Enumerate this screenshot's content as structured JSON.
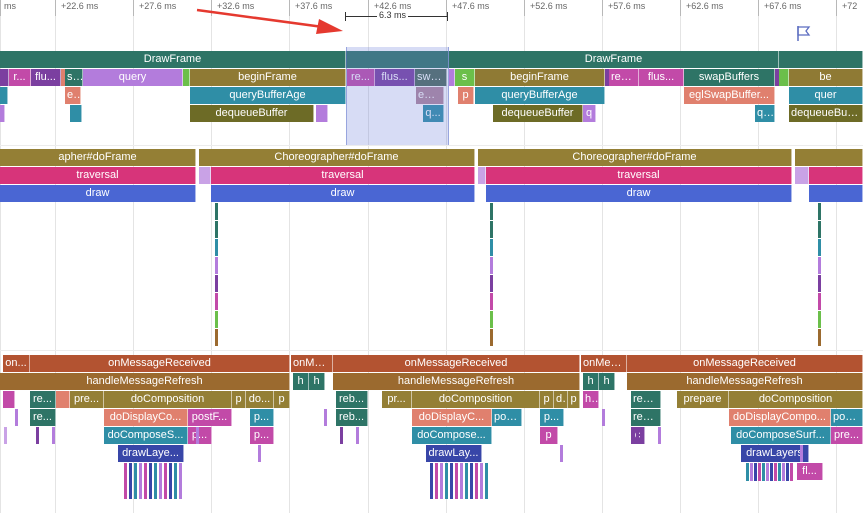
{
  "ruler": {
    "ticks": [
      {
        "label": "ms"
      },
      {
        "label": "+22.6 ms"
      },
      {
        "label": "+27.6 ms"
      },
      {
        "label": "+32.6 ms"
      },
      {
        "label": "+37.6 ms"
      },
      {
        "label": "+42.6 ms"
      },
      {
        "label": "+47.6 ms"
      },
      {
        "label": "+52.6 ms"
      },
      {
        "label": "+57.6 ms"
      },
      {
        "label": "+62.6 ms"
      },
      {
        "label": "+67.6 ms"
      },
      {
        "label": "+72"
      }
    ]
  },
  "measurement": {
    "label": "6.3 ms"
  },
  "colors": {
    "teal": "#2e7466",
    "gray_green": "#4d6a5a",
    "olive": "#8f7a34",
    "olive2": "#947f35",
    "magenta": "#c24aa8",
    "purple": "#7b3fa0",
    "violet": "#b37cdc",
    "lilac": "#c9a2e6",
    "salmon": "#e0806e",
    "cyan": "#2f8ea6",
    "mauve": "#b0859a",
    "green": "#6bbf4a",
    "pink": "#d7347a",
    "blue": "#4a66d3",
    "rust": "#b35331",
    "brown": "#9b6a2f",
    "darkolive": "#6d6b26",
    "navy": "#3846a8"
  },
  "render_thread": {
    "frames": [
      {
        "draw": "DrawFrame",
        "row2": [
          {
            "label": "r..."
          },
          {
            "label": "flu..."
          },
          {
            "label": "s..."
          },
          {
            "label": "query"
          },
          {
            "label": "beginFrame"
          }
        ],
        "row3": [
          {
            "label": "e..."
          },
          {
            "label": "queryBufferAge"
          }
        ],
        "row4": [
          {
            "label": "dequeueBuffer"
          }
        ]
      },
      {
        "draw": "DrawFrame",
        "row2": [
          {
            "label": "s"
          },
          {
            "label": "beginFrame"
          },
          {
            "label": "ren..."
          },
          {
            "label": "flus..."
          },
          {
            "label": "swapBuffers"
          }
        ],
        "row3": [
          {
            "label": "p"
          },
          {
            "label": "queryBufferAge"
          },
          {
            "label": "eglSwapBuffer..."
          }
        ],
        "row4": [
          {
            "label": "dequeueBuffer"
          },
          {
            "label": "q"
          },
          {
            "label": "q..."
          }
        ]
      }
    ],
    "selected": {
      "row2": [
        {
          "label": "re..."
        },
        {
          "label": "flus..."
        },
        {
          "label": "swa..."
        }
      ],
      "row3": [
        {
          "label": "egl..."
        }
      ],
      "row4": [
        {
          "label": "q..."
        }
      ]
    },
    "extra": {
      "row2_right": "be",
      "row3_right": "quer",
      "row4_right": "dequeueBuffer"
    }
  },
  "ui_thread": {
    "doFrame_left": "apher#doFrame",
    "traversal_left": "traversal",
    "draw_left": "draw",
    "doFrame": "Choreographer#doFrame",
    "traversal": "traversal",
    "draw": "draw"
  },
  "surfaceflinger": {
    "groups": [
      {
        "on_short": "on...",
        "onMessage": "onMessageReceived",
        "handle": "handleMessageRefresh",
        "row3": [
          "re...",
          "pre...",
          "doComposition",
          "p",
          "do...",
          "p"
        ],
        "row4": [
          "re...",
          "doDisplayCo...",
          "postF...",
          "p..."
        ],
        "row5": [
          "doComposeS...",
          "p...",
          "p..."
        ],
        "row6": [
          "drawLaye..."
        ]
      },
      {
        "on_short": "onMes...",
        "onMessage": "onMessageReceived",
        "h1": "h",
        "h2": "h",
        "handle": "handleMessageRefresh",
        "row3": [
          "reb...",
          "pr...",
          "doComposition",
          "p",
          "d...",
          "p"
        ],
        "row4": [
          "reb...",
          "doDisplayC...",
          "pos...",
          "p..."
        ],
        "row5": [
          "doCompose...",
          "p"
        ],
        "row6": [
          "drawLay..."
        ]
      },
      {
        "on_short": "onMes...",
        "onMessage": "onMessageReceived",
        "h1": "h",
        "h2": "h",
        "handle": "handleMessageRefresh",
        "row3": [
          "h...",
          "reb...",
          "prepare",
          "doComposition"
        ],
        "row4": [
          "reb...",
          "doDisplayCompo...",
          "postF"
        ],
        "row5": [
          "c",
          "doComposeSurf...",
          "pre..."
        ],
        "row6": [
          "drawLayers",
          "fl..."
        ]
      }
    ]
  }
}
